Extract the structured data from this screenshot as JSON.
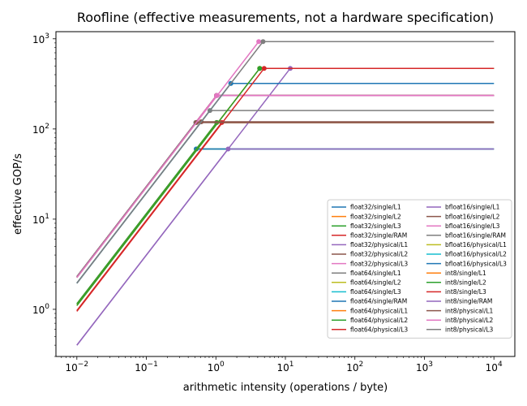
{
  "chart_data": {
    "type": "line",
    "title": "Roofline (effective measurements, not a hardware specification)",
    "xlabel": "arithmetic intensity (operations / byte)",
    "ylabel": "effective GOP/s",
    "xscale": "log",
    "yscale": "log",
    "xlim": [
      0.005,
      20000
    ],
    "ylim": [
      0.3,
      1200
    ],
    "x_ticks": [
      {
        "base": "10",
        "exp": "−2",
        "value": 0.01
      },
      {
        "base": "10",
        "exp": "−1",
        "value": 0.1
      },
      {
        "base": "10",
        "exp": "0",
        "value": 1
      },
      {
        "base": "10",
        "exp": "1",
        "value": 10
      },
      {
        "base": "10",
        "exp": "2",
        "value": 100
      },
      {
        "base": "10",
        "exp": "3",
        "value": 1000
      },
      {
        "base": "10",
        "exp": "4",
        "value": 10000
      }
    ],
    "y_ticks": [
      {
        "base": "10",
        "exp": "0",
        "value": 1
      },
      {
        "base": "10",
        "exp": "1",
        "value": 10
      },
      {
        "base": "10",
        "exp": "2",
        "value": 100
      },
      {
        "base": "10",
        "exp": "3",
        "value": 1000
      }
    ],
    "grid": false,
    "legend_position": "lower-right",
    "x_range": [
      0.01,
      10000
    ],
    "series": [
      {
        "name": "float32/single/L1",
        "color": "#1f77b4",
        "bandwidth": 230,
        "peak": 235
      },
      {
        "name": "float32/single/L2",
        "color": "#ff7f0e",
        "bandwidth": 230,
        "peak": 235
      },
      {
        "name": "float32/single/L3",
        "color": "#2ca02c",
        "bandwidth": 230,
        "peak": 235
      },
      {
        "name": "float32/single/RAM",
        "color": "#d62728",
        "bandwidth": 230,
        "peak": 235
      },
      {
        "name": "float32/physical/L1",
        "color": "#9467bd",
        "bandwidth": 230,
        "peak": 235
      },
      {
        "name": "float32/physical/L2",
        "color": "#8c564b",
        "bandwidth": 230,
        "peak": 235
      },
      {
        "name": "float32/physical/L3",
        "color": "#e377c2",
        "bandwidth": 230,
        "peak": 235
      },
      {
        "name": "float64/single/L1",
        "color": "#7f7f7f",
        "bandwidth": 230,
        "peak": 118
      },
      {
        "name": "float64/single/L2",
        "color": "#bcbd22",
        "bandwidth": 115,
        "peak": 60
      },
      {
        "name": "float64/single/L3",
        "color": "#17becf",
        "bandwidth": 115,
        "peak": 60
      },
      {
        "name": "float64/single/RAM",
        "color": "#1f77b4",
        "bandwidth": 115,
        "peak": 60
      },
      {
        "name": "float64/physical/L1",
        "color": "#ff7f0e",
        "bandwidth": 115,
        "peak": 118
      },
      {
        "name": "float64/physical/L2",
        "color": "#2ca02c",
        "bandwidth": 115,
        "peak": 118
      },
      {
        "name": "float64/physical/L3",
        "color": "#d62728",
        "bandwidth": 97,
        "peak": 118
      },
      {
        "name": "bfloat16/single/L1",
        "color": "#9467bd",
        "bandwidth": 40,
        "peak": 470
      },
      {
        "name": "bfloat16/single/L2",
        "color": "#8c564b",
        "bandwidth": 195,
        "peak": 120
      },
      {
        "name": "bfloat16/single/L3",
        "color": "#e377c2",
        "bandwidth": 225,
        "peak": 235
      },
      {
        "name": "bfloat16/single/RAM",
        "color": "#7f7f7f",
        "bandwidth": 195,
        "peak": 160
      },
      {
        "name": "bfloat16/physical/L1",
        "color": "#bcbd22",
        "bandwidth": 110,
        "peak": 470
      },
      {
        "name": "bfloat16/physical/L2",
        "color": "#17becf",
        "bandwidth": 195,
        "peak": 320
      },
      {
        "name": "bfloat16/physical/L3",
        "color": "#1f77b4",
        "bandwidth": 195,
        "peak": 320
      },
      {
        "name": "int8/single/L1",
        "color": "#ff7f0e",
        "bandwidth": 110,
        "peak": 470
      },
      {
        "name": "int8/single/L2",
        "color": "#2ca02c",
        "bandwidth": 110,
        "peak": 470
      },
      {
        "name": "int8/single/L3",
        "color": "#d62728",
        "bandwidth": 95,
        "peak": 470
      },
      {
        "name": "int8/single/RAM",
        "color": "#9467bd",
        "bandwidth": 40,
        "peak": 60
      },
      {
        "name": "int8/physical/L1",
        "color": "#8c564b",
        "bandwidth": 225,
        "peak": 118
      },
      {
        "name": "int8/physical/L2",
        "color": "#e377c2",
        "bandwidth": 225,
        "peak": 930
      },
      {
        "name": "int8/physical/L3",
        "color": "#7f7f7f",
        "bandwidth": 195,
        "peak": 930
      }
    ]
  }
}
